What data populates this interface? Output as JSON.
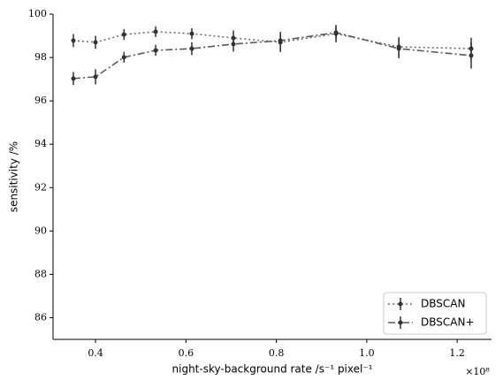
{
  "chart_data": {
    "type": "line",
    "xlabel": "night-sky-background rate /s⁻¹ pixel⁻¹",
    "ylabel": "sensitivity /%",
    "x_offset_label": "×10⁸",
    "x": [
      0.351,
      0.4,
      0.463,
      0.533,
      0.613,
      0.705,
      0.809,
      0.932,
      1.071,
      1.231
    ],
    "series": [
      {
        "name": "DBSCAN",
        "color": "#6e6e6e",
        "dash": "2,3",
        "values": [
          98.78,
          98.7,
          99.06,
          99.19,
          99.1,
          98.9,
          98.7,
          99.1,
          98.49,
          98.41
        ],
        "errors": [
          0.3,
          0.3,
          0.25,
          0.25,
          0.25,
          0.35,
          0.45,
          0.4,
          0.45,
          0.5
        ]
      },
      {
        "name": "DBSCAN+",
        "color": "#5a5a5a",
        "dash": "8,3,2,3",
        "values": [
          97.03,
          97.11,
          98.01,
          98.33,
          98.41,
          98.62,
          98.78,
          99.15,
          98.41,
          98.09
        ],
        "errors": [
          0.3,
          0.35,
          0.25,
          0.25,
          0.3,
          0.35,
          0.4,
          0.3,
          0.45,
          0.6
        ]
      }
    ],
    "xlim": [
      0.306,
      1.276
    ],
    "xticks": [
      0.4,
      0.6,
      0.8,
      1.0,
      1.2
    ],
    "ylim": [
      85,
      100
    ],
    "yticks": [
      86,
      88,
      90,
      92,
      94,
      96,
      98,
      100
    ],
    "legend": "lower right"
  }
}
